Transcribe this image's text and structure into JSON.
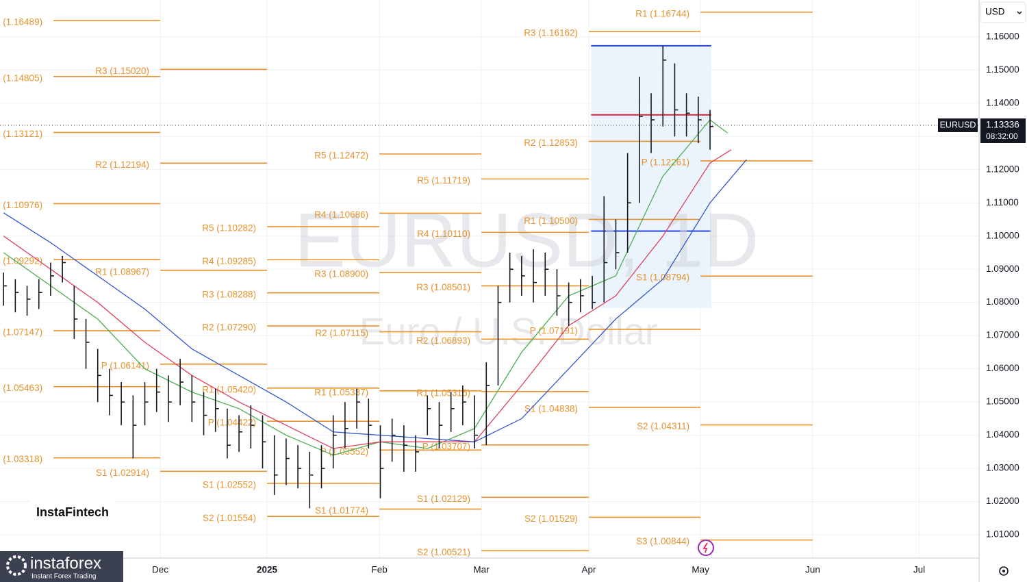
{
  "chart_data": {
    "type": "ohlc",
    "symbol_watermark": "EURUSD, 1D",
    "description_watermark": "Euro / U.S. Dollar",
    "currency": "USD",
    "price_tag": {
      "symbol": "EURUSD",
      "value": 1.13336,
      "label": "1.13336",
      "countdown": "08:32:00"
    },
    "xlim": [
      -0.3,
      82.85
    ],
    "ylim": [
      1.003,
      1.1711
    ],
    "xticks": [
      {
        "value": 13.31,
        "label": "Dec"
      },
      {
        "value": 22.38,
        "label": "2025"
      },
      {
        "value": 31.92,
        "label": "Feb"
      },
      {
        "value": 40.58,
        "label": "Mar"
      },
      {
        "value": 49.71,
        "label": "Apr"
      },
      {
        "value": 59.19,
        "label": "May"
      },
      {
        "value": 68.72,
        "label": "Jun"
      },
      {
        "value": 77.76,
        "label": "Jul"
      }
    ],
    "yticks": [
      {
        "value": 1.16,
        "label": "1.16000"
      },
      {
        "value": 1.15,
        "label": "1.15000"
      },
      {
        "value": 1.14,
        "label": "1.14000"
      },
      {
        "value": 1.13,
        "label": "1.13000"
      },
      {
        "value": 1.12,
        "label": "1.12000"
      },
      {
        "value": 1.11,
        "label": "1.11000"
      },
      {
        "value": 1.1,
        "label": "1.10000"
      },
      {
        "value": 1.09,
        "label": "1.09000"
      },
      {
        "value": 1.08,
        "label": "1.08000"
      },
      {
        "value": 1.07,
        "label": "1.07000"
      },
      {
        "value": 1.06,
        "label": "1.06000"
      },
      {
        "value": 1.05,
        "label": "1.05000"
      },
      {
        "value": 1.04,
        "label": "1.04000"
      },
      {
        "value": 1.03,
        "label": "1.03000"
      },
      {
        "value": 1.02,
        "label": "1.02000"
      },
      {
        "value": 1.01,
        "label": "1.01000"
      }
    ],
    "grid": true,
    "bar_color": "#131722",
    "ohlc": {
      "high": [
        1.089,
        1.087,
        1.085,
        1.087,
        1.092,
        1.094,
        1.085,
        1.075,
        1.066,
        1.06,
        1.056,
        1.052,
        1.056,
        1.06,
        1.058,
        1.063,
        1.058,
        1.053,
        1.054,
        1.048,
        1.046,
        1.049,
        1.046,
        1.04,
        1.039,
        1.037,
        1.035,
        1.037,
        1.046,
        1.05,
        1.054,
        1.051,
        1.043,
        1.045,
        1.043,
        1.04,
        1.052,
        1.05,
        1.053,
        1.055,
        1.052,
        1.062,
        1.085,
        1.095,
        1.094,
        1.096,
        1.095,
        1.09,
        1.086,
        1.087,
        1.088,
        1.112,
        1.105,
        1.125,
        1.148,
        1.143,
        1.1573,
        1.152,
        1.143,
        1.142,
        1.138
      ],
      "low": [
        1.079,
        1.077,
        1.076,
        1.078,
        1.082,
        1.086,
        1.069,
        1.06,
        1.05,
        1.046,
        1.043,
        1.033,
        1.043,
        1.047,
        1.044,
        1.049,
        1.044,
        1.04,
        1.041,
        1.033,
        1.035,
        1.036,
        1.03,
        1.022,
        1.025,
        1.024,
        1.018,
        1.024,
        1.03,
        1.036,
        1.042,
        1.036,
        1.021,
        1.032,
        1.029,
        1.029,
        1.04,
        1.036,
        1.041,
        1.043,
        1.036,
        1.037,
        1.055,
        1.08,
        1.082,
        1.08,
        1.082,
        1.076,
        1.073,
        1.077,
        1.078,
        1.08,
        1.09,
        1.095,
        1.11,
        1.125,
        1.133,
        1.13,
        1.13,
        1.128,
        1.126
      ],
      "close": [
        1.085,
        1.083,
        1.081,
        1.083,
        1.088,
        1.092,
        1.075,
        1.068,
        1.058,
        1.052,
        1.05,
        1.043,
        1.05,
        1.053,
        1.05,
        1.056,
        1.05,
        1.046,
        1.048,
        1.037,
        1.041,
        1.043,
        1.038,
        1.028,
        1.033,
        1.03,
        1.028,
        1.03,
        1.04,
        1.042,
        1.05,
        1.043,
        1.03,
        1.04,
        1.037,
        1.035,
        1.048,
        1.043,
        1.048,
        1.05,
        1.04,
        1.055,
        1.08,
        1.09,
        1.088,
        1.086,
        1.09,
        1.082,
        1.08,
        1.082,
        1.08,
        1.092,
        1.095,
        1.11,
        1.136,
        1.135,
        1.153,
        1.138,
        1.137,
        1.135,
        1.133
      ]
    },
    "moving_averages": [
      {
        "color": "#4caf50",
        "x": [
          0,
          4,
          8,
          12,
          16,
          20,
          24,
          28,
          32,
          36,
          40,
          44,
          48,
          52,
          56,
          60,
          61.5
        ],
        "values": [
          1.095,
          1.085,
          1.075,
          1.06,
          1.053,
          1.048,
          1.04,
          1.034,
          1.038,
          1.036,
          1.042,
          1.065,
          1.082,
          1.088,
          1.118,
          1.135,
          1.131
        ]
      },
      {
        "color": "#e0405a",
        "x": [
          0,
          4,
          8,
          12,
          16,
          20,
          24,
          28,
          32,
          36,
          40,
          44,
          48,
          52,
          56,
          60,
          61.8
        ],
        "values": [
          1.1,
          1.09,
          1.08,
          1.068,
          1.058,
          1.05,
          1.043,
          1.036,
          1.038,
          1.038,
          1.038,
          1.055,
          1.073,
          1.082,
          1.1,
          1.122,
          1.126
        ]
      },
      {
        "color": "#3355cc",
        "x": [
          0,
          4,
          8,
          12,
          16,
          20,
          24,
          28,
          32,
          36,
          40,
          44,
          48,
          52,
          56,
          60,
          63.1
        ],
        "values": [
          1.107,
          1.098,
          1.088,
          1.078,
          1.066,
          1.058,
          1.05,
          1.041,
          1.04,
          1.039,
          1.038,
          1.045,
          1.06,
          1.075,
          1.087,
          1.11,
          1.123
        ]
      }
    ],
    "volume_profile": {
      "start": 49.9,
      "end": 60.1,
      "top": 1.1573,
      "bottom": 1.0783,
      "value_area_high": 1.1573,
      "value_area_low": 1.1015,
      "poc": 1.1365
    },
    "pivot_color": "#e8922c",
    "pivot_periods": [
      {
        "start": -0.3,
        "end": 4.24,
        "levels": []
      },
      {
        "start": 4.24,
        "end": 13.31,
        "levels": [
          {
            "label": "(1.16489)",
            "value": 1.16489
          },
          {
            "label": "(1.14805)",
            "value": 1.14805
          },
          {
            "label": "(1.13121)",
            "value": 1.13121
          },
          {
            "label": "(1.10976)",
            "value": 1.10976
          },
          {
            "label": "(1.09292)",
            "value": 1.09292
          },
          {
            "label": "(1.07147)",
            "value": 1.07147
          },
          {
            "label": "(1.05463)",
            "value": 1.05463
          },
          {
            "label": "(1.03318)",
            "value": 1.03318
          }
        ]
      },
      {
        "start": 13.31,
        "end": 22.38,
        "levels": [
          {
            "label": "R3 (1.15020)",
            "value": 1.1502
          },
          {
            "label": "R2 (1.12194)",
            "value": 1.12194
          },
          {
            "label": "R1 (1.08967)",
            "value": 1.08967
          },
          {
            "label": "P (1.06141)",
            "value": 1.06141
          },
          {
            "label": "S1 (1.02914)",
            "value": 1.02914
          }
        ]
      },
      {
        "start": 22.38,
        "end": 31.92,
        "levels": [
          {
            "label": "R5 (1.10282)",
            "value": 1.10282
          },
          {
            "label": "R4 (1.09285)",
            "value": 1.09285
          },
          {
            "label": "R3 (1.08288)",
            "value": 1.08288
          },
          {
            "label": "R2 (1.07290)",
            "value": 1.0729
          },
          {
            "label": "R1 (1.05420)",
            "value": 1.0542
          },
          {
            "label": "P (1.04422)",
            "value": 1.04422
          },
          {
            "label": "S1 (1.02552)",
            "value": 1.02552
          },
          {
            "label": "S2 (1.01554)",
            "value": 1.01554
          }
        ]
      },
      {
        "start": 31.92,
        "end": 40.58,
        "levels": [
          {
            "label": "R5 (1.12472)",
            "value": 1.12472
          },
          {
            "label": "R4 (1.10686)",
            "value": 1.10686
          },
          {
            "label": "R3 (1.08900)",
            "value": 1.089
          },
          {
            "label": "R2 (1.07115)",
            "value": 1.07115
          },
          {
            "label": "R1 (1.05337)",
            "value": 1.05337
          },
          {
            "label": "P (1.03552)",
            "value": 1.03552
          },
          {
            "label": "S1 (1.01774)",
            "value": 1.01774
          }
        ]
      },
      {
        "start": 40.58,
        "end": 49.71,
        "levels": [
          {
            "label": "R5 (1.11719)",
            "value": 1.11719
          },
          {
            "label": "R4 (1.10110)",
            "value": 1.1011
          },
          {
            "label": "R3 (1.08501)",
            "value": 1.08501
          },
          {
            "label": "R2 (1.06893)",
            "value": 1.06893
          },
          {
            "label": "R1 (1.05315)",
            "value": 1.05315
          },
          {
            "label": "P (1.03707)",
            "value": 1.03707
          },
          {
            "label": "S1 (1.02129)",
            "value": 1.02129
          },
          {
            "label": "S2 (1.00521)",
            "value": 1.00521
          }
        ]
      },
      {
        "start": 49.71,
        "end": 59.19,
        "levels": [
          {
            "label": "R3 (1.16162)",
            "value": 1.16162
          },
          {
            "label": "R2 (1.12853)",
            "value": 1.12853
          },
          {
            "label": "R1 (1.10500)",
            "value": 1.105
          },
          {
            "label": "P (1.07191)",
            "value": 1.07191
          },
          {
            "label": "S1 (1.04838)",
            "value": 1.04838
          },
          {
            "label": "S2 (1.01529)",
            "value": 1.01529
          }
        ]
      },
      {
        "start": 59.19,
        "end": 68.72,
        "levels": [
          {
            "label": "R1 (1.16744)",
            "value": 1.16744
          },
          {
            "label": "P (1.12261)",
            "value": 1.12261
          },
          {
            "label": "S1 (1.08794)",
            "value": 1.08794
          },
          {
            "label": "S2 (1.04311)",
            "value": 1.04311
          },
          {
            "label": "S3 (1.00844)",
            "value": 1.00844
          }
        ]
      }
    ]
  },
  "logos": {
    "fintech": "InstaFintech",
    "forex": "instaforex",
    "forex_tagline": "Instant Forex Trading"
  }
}
